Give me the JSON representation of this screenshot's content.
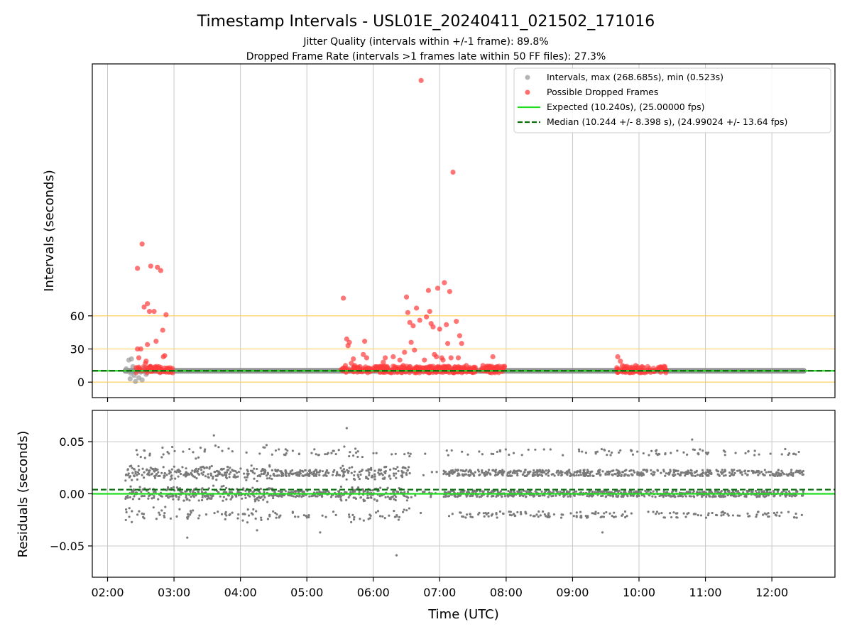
{
  "chart_data": [
    {
      "type": "scatter",
      "panel": "top",
      "title": "Timestamp Intervals - USL01E_20240411_021502_171016",
      "subtitle_lines": [
        "Jitter Quality (intervals within +/-1 frame): 89.8%",
        "Dropped Frame Rate (intervals >1 frames late within 50 FF files): 27.3%"
      ],
      "ylabel": "Intervals (seconds)",
      "ylim": [
        -14,
        288
      ],
      "yticks": [
        0,
        30,
        60
      ],
      "ytick_labels": [
        "0",
        "30",
        "60"
      ],
      "xlim_hours": [
        1.77,
        12.95
      ],
      "grid": "vertical",
      "horizontal_lines": [
        {
          "y": 0,
          "color": "#ffd470"
        },
        {
          "y": 30,
          "color": "#ffd470"
        },
        {
          "y": 60,
          "color": "#ffd470"
        }
      ],
      "expected_interval": 10.24,
      "median_interval": 10.244,
      "legend_position": "top-right",
      "legend": [
        {
          "label": "Intervals, max (268.685s), min (0.523s)",
          "marker": "dot",
          "color": "#9b9b9b"
        },
        {
          "label": "Possible Dropped Frames",
          "marker": "dot",
          "color": "#ff4a4a"
        },
        {
          "label": "Expected (10.240s), (25.00000 fps)",
          "marker": "solid-line",
          "color": "#22dd22"
        },
        {
          "label": "Median (10.244 +/- 8.398 s), (24.99024 +/- 13.64 fps)",
          "marker": "dashed-line",
          "color": "#0a6e0a"
        }
      ],
      "normal_band": {
        "x_start": 2.27,
        "x_end": 12.48,
        "y": 10.24
      },
      "gray_points": [
        [
          2.28,
          12
        ],
        [
          2.3,
          10
        ],
        [
          2.32,
          20
        ],
        [
          2.34,
          3
        ],
        [
          2.35,
          8
        ],
        [
          2.36,
          21
        ],
        [
          2.38,
          14
        ],
        [
          2.4,
          6
        ],
        [
          2.42,
          0.6
        ],
        [
          2.45,
          11
        ],
        [
          2.47,
          4
        ],
        [
          2.5,
          9
        ],
        [
          2.52,
          2
        ],
        [
          2.55,
          13
        ],
        [
          2.58,
          7
        ],
        [
          2.62,
          12
        ],
        [
          2.7,
          10
        ],
        [
          2.8,
          9
        ]
      ],
      "red_points": [
        [
          2.45,
          103
        ],
        [
          2.45,
          30
        ],
        [
          2.47,
          22
        ],
        [
          2.5,
          30
        ],
        [
          2.52,
          125
        ],
        [
          2.55,
          68
        ],
        [
          2.57,
          17
        ],
        [
          2.58,
          19
        ],
        [
          2.6,
          71
        ],
        [
          2.6,
          34
        ],
        [
          2.63,
          64
        ],
        [
          2.65,
          105
        ],
        [
          2.68,
          11
        ],
        [
          2.7,
          64
        ],
        [
          2.73,
          37
        ],
        [
          2.75,
          104
        ],
        [
          2.78,
          12
        ],
        [
          2.8,
          101
        ],
        [
          2.83,
          47
        ],
        [
          2.84,
          23
        ],
        [
          2.86,
          24
        ],
        [
          2.88,
          61
        ],
        [
          2.92,
          12
        ],
        [
          5.55,
          76
        ],
        [
          5.58,
          15
        ],
        [
          5.6,
          39
        ],
        [
          5.62,
          33
        ],
        [
          5.64,
          36
        ],
        [
          5.67,
          17
        ],
        [
          5.7,
          21
        ],
        [
          5.72,
          15
        ],
        [
          5.77,
          11
        ],
        [
          5.8,
          14
        ],
        [
          5.85,
          25
        ],
        [
          5.87,
          37
        ],
        [
          5.9,
          22
        ],
        [
          6.05,
          14
        ],
        [
          6.15,
          18
        ],
        [
          6.18,
          22
        ],
        [
          6.22,
          12
        ],
        [
          6.3,
          23
        ],
        [
          6.4,
          20
        ],
        [
          6.45,
          15
        ],
        [
          6.47,
          27
        ],
        [
          6.5,
          77
        ],
        [
          6.52,
          63
        ],
        [
          6.55,
          54
        ],
        [
          6.57,
          36
        ],
        [
          6.6,
          51
        ],
        [
          6.62,
          29
        ],
        [
          6.65,
          67
        ],
        [
          6.68,
          11
        ],
        [
          6.7,
          56
        ],
        [
          6.72,
          273
        ],
        [
          6.75,
          12
        ],
        [
          6.77,
          20
        ],
        [
          6.8,
          59
        ],
        [
          6.83,
          83
        ],
        [
          6.85,
          64
        ],
        [
          6.87,
          53
        ],
        [
          6.9,
          50
        ],
        [
          6.92,
          25
        ],
        [
          6.95,
          23
        ],
        [
          6.97,
          85
        ],
        [
          7.0,
          48
        ],
        [
          7.03,
          22
        ],
        [
          7.05,
          20
        ],
        [
          7.07,
          90
        ],
        [
          7.1,
          52
        ],
        [
          7.12,
          35
        ],
        [
          7.15,
          82
        ],
        [
          7.17,
          22
        ],
        [
          7.2,
          190
        ],
        [
          7.25,
          55
        ],
        [
          7.28,
          22
        ],
        [
          7.3,
          42
        ],
        [
          7.33,
          35
        ],
        [
          7.4,
          15
        ],
        [
          7.45,
          12
        ],
        [
          7.65,
          15
        ],
        [
          7.72,
          11
        ],
        [
          7.8,
          23
        ],
        [
          7.87,
          14
        ],
        [
          7.92,
          12
        ],
        [
          9.68,
          23
        ],
        [
          9.72,
          19
        ],
        [
          9.75,
          15
        ],
        [
          9.78,
          12
        ],
        [
          9.82,
          11
        ],
        [
          9.88,
          10
        ],
        [
          9.95,
          15
        ],
        [
          10.0,
          11
        ],
        [
          10.1,
          10
        ],
        [
          10.3,
          12
        ],
        [
          10.4,
          10
        ]
      ],
      "red_clusters": [
        {
          "x_start": 2.42,
          "x_end": 2.98,
          "count": 60
        },
        {
          "x_start": 5.52,
          "x_end": 7.55,
          "count": 300
        },
        {
          "x_start": 7.62,
          "x_end": 7.98,
          "count": 55
        },
        {
          "x_start": 9.65,
          "x_end": 10.42,
          "count": 80
        }
      ]
    },
    {
      "type": "scatter",
      "panel": "bottom",
      "xlabel": "Time (UTC)",
      "ylabel": "Residuals (seconds)",
      "ylim": [
        -0.08,
        0.08
      ],
      "yticks": [
        -0.05,
        0.0,
        0.05
      ],
      "ytick_labels": [
        "−0.05",
        "0.00",
        "0.05"
      ],
      "xticks_hours": [
        2,
        3,
        4,
        5,
        6,
        7,
        8,
        9,
        10,
        11,
        12
      ],
      "xtick_labels": [
        "02:00",
        "03:00",
        "04:00",
        "05:00",
        "06:00",
        "07:00",
        "08:00",
        "09:00",
        "10:00",
        "11:00",
        "12:00"
      ],
      "xlim_hours": [
        1.77,
        12.95
      ],
      "grid": "both",
      "expected_line_y": 0.0,
      "median_line_y": 0.004,
      "residual_levels": [
        -0.02,
        0.0,
        0.02,
        0.04
      ],
      "x_range": [
        2.27,
        12.48
      ],
      "gap_hours": [
        6.55,
        7.05
      ],
      "point_count": 2600,
      "outliers": [
        [
          3.2,
          -0.042
        ],
        [
          3.6,
          0.056
        ],
        [
          5.6,
          0.063
        ],
        [
          6.35,
          -0.059
        ],
        [
          9.45,
          -0.037
        ],
        [
          10.8,
          0.052
        ],
        [
          4.25,
          -0.035
        ],
        [
          5.2,
          -0.037
        ]
      ]
    }
  ]
}
